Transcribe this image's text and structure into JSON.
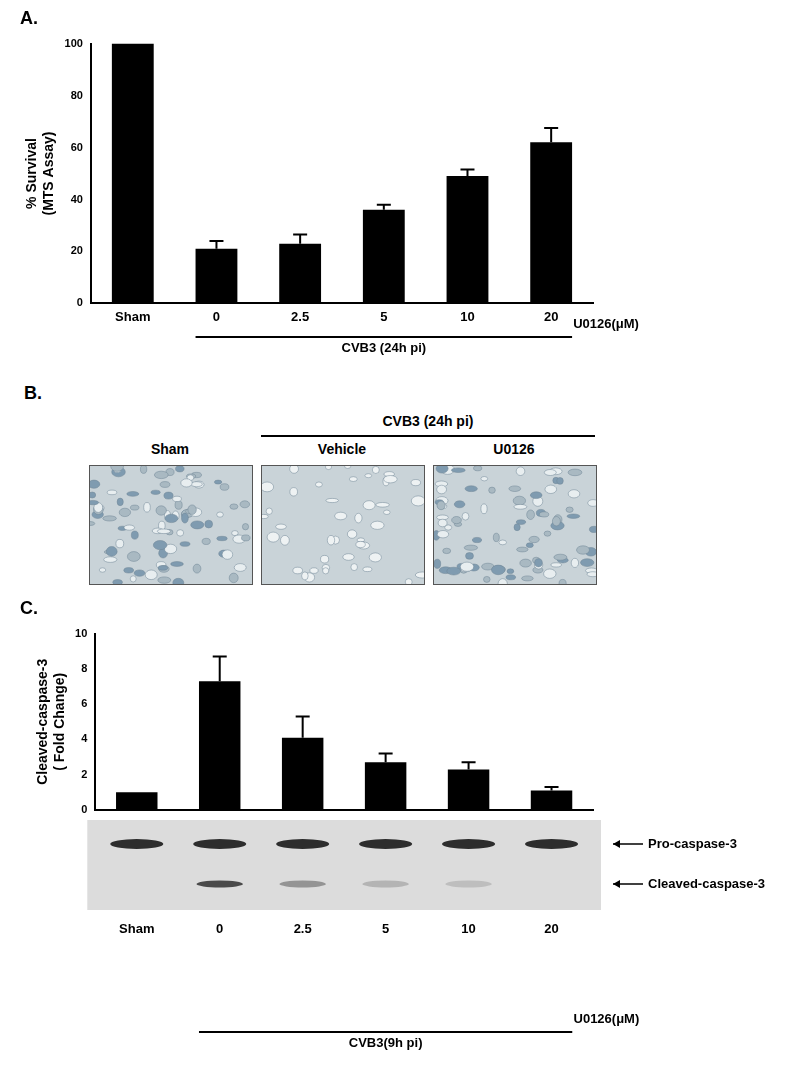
{
  "chart_data": [
    {
      "type": "bar",
      "title": "A.",
      "y_label": [
        "% Survival",
        "(MTS Assay)"
      ],
      "categories": [
        "Sham",
        "0",
        "2.5",
        "5",
        "10",
        "20"
      ],
      "values": [
        100,
        21,
        23,
        36,
        49,
        62
      ],
      "errors": [
        0,
        3,
        3.5,
        2,
        2.5,
        5.5
      ],
      "color": "#000000",
      "ylim": [
        0,
        100
      ],
      "yticks": [
        0,
        20,
        40,
        60,
        80,
        100
      ],
      "grid": false,
      "x_unit_label": "U0126(μM)",
      "group_label": {
        "text": "CVB3 (24h pi)",
        "from": "0",
        "to": "20"
      }
    },
    {
      "type": "bar",
      "title": "C.",
      "y_label": [
        "Cleaved-caspase-3",
        "( Fold Change)"
      ],
      "categories": [
        "Sham",
        "0",
        "2.5",
        "5",
        "10",
        "20"
      ],
      "values": [
        1,
        7.3,
        4.1,
        2.7,
        2.3,
        1.1
      ],
      "errors": [
        0,
        1.4,
        1.2,
        0.5,
        0.4,
        0.2
      ],
      "color": "#000000",
      "ylim": [
        0,
        10
      ],
      "yticks": [
        0,
        2,
        4,
        6,
        8,
        10
      ],
      "grid": false,
      "x_unit_label": "U0126(μM)",
      "group_label": {
        "text": "CVB3(9h pi)",
        "from": "0",
        "to": "20"
      },
      "blot": {
        "bands": [
          "Pro-caspase-3",
          "Cleaved-caspase-3"
        ]
      }
    }
  ],
  "image_panel": {
    "label": "B.",
    "group_label": {
      "text": "CVB3 (24h pi)",
      "from": "Vehicle",
      "to": "U0126"
    },
    "images": [
      "Sham",
      "Vehicle",
      "U0126"
    ]
  }
}
